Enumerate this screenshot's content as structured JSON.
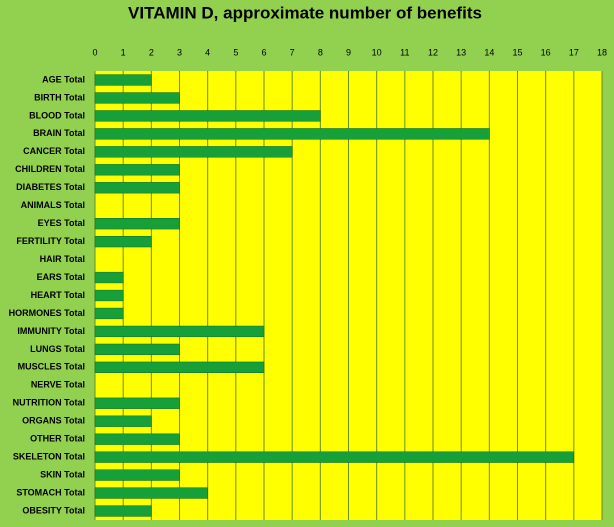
{
  "chart_data": {
    "type": "barh",
    "title": "VITAMIN D, approximate number of benefits",
    "categories": [
      "AGE Total",
      "BIRTH Total",
      "BLOOD Total",
      "BRAIN Total",
      "CANCER Total",
      "CHILDREN Total",
      "DIABETES Total",
      "ANIMALS Total",
      "EYES Total",
      "FERTILITY Total",
      "HAIR Total",
      "EARS Total",
      "HEART Total",
      "HORMONES Total",
      "IMMUNITY Total",
      "LUNGS Total",
      "MUSCLES Total",
      "NERVE Total",
      "NUTRITION Total",
      "ORGANS Total",
      "OTHER Total",
      "SKELETON Total",
      "SKIN Total",
      "STOMACH Total",
      "OBESITY Total"
    ],
    "values": [
      2,
      3,
      8,
      14,
      7,
      3,
      3,
      0,
      3,
      2,
      0,
      1,
      1,
      1,
      6,
      3,
      6,
      0,
      3,
      2,
      3,
      17,
      3,
      4,
      2
    ],
    "color": "#17a03a",
    "xlim": [
      0,
      18
    ],
    "xticks": [
      0,
      1,
      2,
      3,
      4,
      5,
      6,
      7,
      8,
      9,
      10,
      11,
      12,
      13,
      14,
      15,
      16,
      17,
      18
    ],
    "grid": true
  }
}
